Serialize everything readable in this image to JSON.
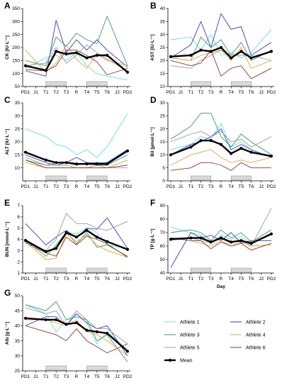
{
  "chart_data": [
    {
      "type": "line",
      "panel": "A",
      "ylabel": "CK [IU·L⁻¹]",
      "xlabel": "",
      "categories": [
        "PD1",
        "J1",
        "T1",
        "T2",
        "T3",
        "R",
        "T4",
        "T5",
        "T6",
        "J2",
        "PD2"
      ],
      "ylim": [
        50,
        350
      ],
      "yticks": [
        50,
        100,
        150,
        200,
        250,
        300,
        350
      ],
      "series": [
        {
          "name": "Athlete 1",
          "values": [
            120,
            null,
            160,
            170,
            150,
            180,
            130,
            100,
            90,
            null,
            75
          ]
        },
        {
          "name": "Athlete 2",
          "values": [
            110,
            null,
            90,
            305,
            180,
            230,
            190,
            230,
            190,
            null,
            125
          ]
        },
        {
          "name": "Athlete 3",
          "values": [
            150,
            null,
            130,
            240,
            205,
            255,
            230,
            215,
            320,
            null,
            130
          ]
        },
        {
          "name": "Athlete 4",
          "values": [
            190,
            null,
            105,
            140,
            210,
            155,
            120,
            175,
            150,
            null,
            130
          ]
        },
        {
          "name": "Athlete 5",
          "values": [
            130,
            null,
            140,
            200,
            140,
            170,
            210,
            180,
            155,
            null,
            110
          ]
        },
        {
          "name": "Athlete 6",
          "values": [
            115,
            null,
            110,
            130,
            190,
            190,
            170,
            145,
            95,
            null,
            120
          ]
        },
        {
          "name": "Mean",
          "values": [
            130,
            null,
            112,
            185,
            175,
            180,
            160,
            170,
            170,
            null,
            105
          ]
        }
      ],
      "shaded_days": [
        "T2",
        "T5"
      ]
    },
    {
      "type": "line",
      "panel": "B",
      "ylabel": "AST [IU·L⁻¹]",
      "xlabel": "",
      "categories": [
        "PD1",
        "J1",
        "T1",
        "T2",
        "T3",
        "R",
        "T4",
        "T5",
        "T6",
        "J2",
        "PD2"
      ],
      "ylim": [
        10,
        40
      ],
      "yticks": [
        10,
        15,
        20,
        25,
        30,
        35,
        40
      ],
      "series": [
        {
          "name": "Athlete 1",
          "values": [
            28,
            null,
            29,
            24,
            30,
            22,
            23,
            21,
            23,
            null,
            32
          ]
        },
        {
          "name": "Athlete 2",
          "values": [
            21,
            null,
            26,
            35,
            25,
            38,
            32,
            33,
            22,
            null,
            27
          ]
        },
        {
          "name": "Athlete 3",
          "values": [
            21,
            null,
            20,
            29,
            25,
            28,
            22,
            27,
            20,
            null,
            24
          ]
        },
        {
          "name": "Athlete 4",
          "values": [
            21,
            null,
            20,
            22,
            23,
            24,
            20,
            25,
            17,
            null,
            20
          ]
        },
        {
          "name": "Athlete 5",
          "values": [
            18,
            null,
            17,
            20,
            22,
            24,
            22,
            22,
            22,
            null,
            20
          ]
        },
        {
          "name": "Athlete 6",
          "values": [
            20,
            null,
            18,
            19,
            24,
            14,
            17,
            18,
            13,
            null,
            17
          ]
        },
        {
          "name": "Mean",
          "values": [
            21.5,
            null,
            22,
            24,
            23.5,
            25,
            21,
            23.5,
            21,
            null,
            23.5
          ]
        }
      ],
      "shaded_days": [
        "T2",
        "T5"
      ]
    },
    {
      "type": "line",
      "panel": "C",
      "ylabel": "ALT [IU·L⁻¹]",
      "xlabel": "",
      "categories": [
        "PD1",
        "J1",
        "T1",
        "T2",
        "T3",
        "R",
        "T4",
        "T5",
        "T6",
        "J2",
        "PD2"
      ],
      "ylim": [
        5,
        35
      ],
      "yticks": [
        10,
        15,
        20,
        25,
        30,
        35
      ],
      "series": [
        {
          "name": "Athlete 1",
          "values": [
            25,
            null,
            22,
            19,
            18,
            15,
            17,
            14,
            18,
            null,
            31
          ]
        },
        {
          "name": "Athlete 2",
          "values": [
            15,
            null,
            12,
            11,
            12,
            14,
            12,
            12,
            12,
            null,
            17
          ]
        },
        {
          "name": "Athlete 3",
          "values": [
            13,
            null,
            11,
            12,
            12,
            11,
            12,
            11,
            11,
            null,
            15
          ]
        },
        {
          "name": "Athlete 4",
          "values": [
            12,
            null,
            10,
            10,
            10,
            10,
            10,
            10,
            10,
            null,
            13
          ]
        },
        {
          "name": "Athlete 5",
          "values": [
            14,
            null,
            11,
            11,
            11,
            10,
            10,
            11,
            10,
            null,
            10
          ]
        },
        {
          "name": "Athlete 6",
          "values": [
            13,
            null,
            10,
            10,
            10,
            10,
            10,
            10,
            10,
            null,
            11
          ]
        },
        {
          "name": "Mean",
          "values": [
            16,
            null,
            13,
            12,
            12,
            11.5,
            11.5,
            11.5,
            11.5,
            null,
            16.5
          ]
        }
      ],
      "shaded_days": [
        "T2",
        "T5"
      ]
    },
    {
      "type": "line",
      "panel": "D",
      "ylabel": "Bil [µmol·L⁻¹]",
      "xlabel": "",
      "categories": [
        "PD1",
        "J1",
        "T1",
        "T2",
        "T3",
        "R",
        "T4",
        "T5",
        "T6",
        "J2",
        "PD2"
      ],
      "ylim": [
        0,
        30
      ],
      "yticks": [
        0,
        5,
        10,
        15,
        20,
        25,
        30
      ],
      "series": [
        {
          "name": "Athlete 1",
          "values": [
            12,
            null,
            14,
            17,
            16,
            22,
            13,
            15,
            12,
            null,
            9
          ]
        },
        {
          "name": "Athlete 2",
          "values": [
            10,
            null,
            14,
            15,
            17,
            20,
            12,
            14,
            12,
            null,
            9
          ]
        },
        {
          "name": "Athlete 3",
          "values": [
            16,
            null,
            21,
            26,
            26,
            17,
            13,
            18,
            15,
            null,
            10
          ]
        },
        {
          "name": "Athlete 4",
          "values": [
            6,
            null,
            10,
            11,
            12,
            9,
            7,
            8,
            7,
            null,
            9
          ]
        },
        {
          "name": "Athlete 5",
          "values": [
            15,
            null,
            18,
            19,
            17,
            19,
            15,
            16,
            13,
            null,
            17
          ]
        },
        {
          "name": "Athlete 6",
          "values": [
            4,
            null,
            5,
            7,
            7,
            6,
            4,
            7,
            5,
            null,
            5
          ]
        },
        {
          "name": "Mean",
          "values": [
            10,
            null,
            13,
            15.5,
            15.5,
            14,
            10.5,
            12.5,
            11,
            null,
            9.5
          ]
        }
      ],
      "shaded_days": [
        "T2",
        "T5"
      ]
    },
    {
      "type": "line",
      "panel": "E",
      "ylabel": "BUN [mmol·L⁻¹]",
      "xlabel": "",
      "categories": [
        "PD1",
        "J1",
        "T1",
        "T2",
        "T3",
        "R",
        "T4",
        "T5",
        "T6",
        "J2",
        "PD2"
      ],
      "ylim": [
        1,
        7
      ],
      "yticks": [
        1,
        2,
        3,
        4,
        5,
        6,
        7
      ],
      "series": [
        {
          "name": "Athlete 1",
          "values": [
            4.0,
            null,
            2.9,
            3.1,
            4.6,
            4.5,
            5.0,
            4.6,
            3.5,
            null,
            3.2
          ]
        },
        {
          "name": "Athlete 2",
          "values": [
            5.4,
            null,
            3.5,
            4.2,
            4.8,
            4.1,
            5.0,
            4.9,
            5.9,
            null,
            3.2
          ]
        },
        {
          "name": "Athlete 3",
          "values": [
            3.9,
            null,
            2.5,
            3.5,
            4.6,
            3.6,
            4.6,
            3.3,
            3.5,
            null,
            2.5
          ]
        },
        {
          "name": "Athlete 4",
          "values": [
            3.8,
            null,
            2.2,
            2.3,
            4.5,
            3.8,
            4.4,
            3.5,
            3.0,
            null,
            2.4
          ]
        },
        {
          "name": "Athlete 5",
          "values": [
            3.8,
            null,
            3.0,
            4.0,
            6.3,
            5.4,
            5.4,
            5.0,
            4.8,
            null,
            5.6
          ]
        },
        {
          "name": "Athlete 6",
          "values": [
            3.7,
            null,
            2.8,
            2.5,
            4.2,
            3.5,
            4.3,
            4.0,
            3.6,
            null,
            2.4
          ]
        },
        {
          "name": "Mean",
          "values": [
            3.9,
            null,
            2.9,
            3.2,
            4.6,
            4.2,
            4.8,
            4.2,
            3.8,
            null,
            3.1
          ]
        }
      ],
      "shaded_days": [
        "T2",
        "T5"
      ]
    },
    {
      "type": "line",
      "panel": "F",
      "ylabel": "TP [g·L⁻¹]",
      "xlabel": "Day",
      "categories": [
        "PD1",
        "J1",
        "T1",
        "T2",
        "T3",
        "R",
        "T4",
        "T5",
        "T6",
        "J2",
        "PD2"
      ],
      "ylim": [
        40,
        90
      ],
      "yticks": [
        40,
        50,
        60,
        70,
        80,
        90
      ],
      "series": [
        {
          "name": "Athlete 1",
          "values": [
            74,
            null,
            70,
            68,
            62,
            68,
            65,
            67,
            62,
            null,
            69
          ]
        },
        {
          "name": "Athlete 2",
          "values": [
            44,
            null,
            70,
            66,
            68,
            64,
            70,
            62,
            64,
            null,
            64
          ]
        },
        {
          "name": "Athlete 3",
          "values": [
            70,
            null,
            72,
            70,
            64,
            72,
            66,
            70,
            63,
            null,
            72
          ]
        },
        {
          "name": "Athlete 4",
          "values": [
            66,
            null,
            64,
            62,
            60,
            64,
            60,
            63,
            60,
            null,
            61
          ]
        },
        {
          "name": "Athlete 5",
          "values": [
            66,
            null,
            66,
            64,
            62,
            66,
            62,
            65,
            60,
            null,
            88
          ]
        },
        {
          "name": "Athlete 6",
          "values": [
            66,
            null,
            64,
            64,
            58,
            63,
            60,
            62,
            57,
            null,
            62
          ]
        },
        {
          "name": "Mean",
          "values": [
            65,
            null,
            66,
            66,
            63,
            66,
            63,
            64,
            62,
            null,
            69
          ]
        }
      ],
      "shaded_days": [
        "T2",
        "T5"
      ]
    },
    {
      "type": "line",
      "panel": "G",
      "ylabel": "Alb [g·L⁻¹]",
      "xlabel": "",
      "categories": [
        "PD1",
        "J1",
        "T1",
        "T2",
        "T3",
        "R",
        "T4",
        "T5",
        "T6",
        "J2",
        "PD2"
      ],
      "ylim": [
        25,
        50
      ],
      "yticks": [
        25,
        30,
        35,
        40,
        45,
        50
      ],
      "series": [
        {
          "name": "Athlete 1",
          "values": [
            47,
            null,
            44,
            38,
            42,
            44,
            41,
            34,
            38,
            null,
            32
          ]
        },
        {
          "name": "Athlete 2",
          "values": [
            40,
            null,
            43,
            43,
            40,
            44,
            41,
            39,
            40,
            null,
            30
          ]
        },
        {
          "name": "Athlete 3",
          "values": [
            47,
            null,
            45,
            48,
            42,
            43,
            42,
            35,
            37,
            null,
            28
          ]
        },
        {
          "name": "Athlete 4",
          "values": [
            42,
            null,
            42,
            41,
            40,
            42,
            38,
            37,
            35,
            null,
            30
          ]
        },
        {
          "name": "Athlete 5",
          "values": [
            46,
            null,
            44,
            45,
            40,
            45,
            42,
            39,
            39,
            null,
            34
          ]
        },
        {
          "name": "Athlete 6",
          "values": [
            40,
            null,
            38,
            37,
            35,
            39,
            35,
            33,
            31,
            null,
            34
          ]
        },
        {
          "name": "Mean",
          "values": [
            42.5,
            null,
            42,
            42,
            40.5,
            41,
            38.5,
            38,
            37.5,
            null,
            31.5
          ]
        }
      ],
      "shaded_days": [
        "T2",
        "T5"
      ]
    }
  ],
  "legend": {
    "items": [
      {
        "label": "Athlete 1",
        "color": "#5fe0e3"
      },
      {
        "label": "Athlete 2",
        "color": "#3a3ac8"
      },
      {
        "label": "Athlete 3",
        "color": "#3a9a6a"
      },
      {
        "label": "Athlete 4",
        "color": "#e8a23c"
      },
      {
        "label": "Athlete 5",
        "color": "#9a9a9a"
      },
      {
        "label": "Athlete 6",
        "color": "#8a3a2a"
      },
      {
        "label": "Mean",
        "color": "#000000"
      }
    ]
  }
}
